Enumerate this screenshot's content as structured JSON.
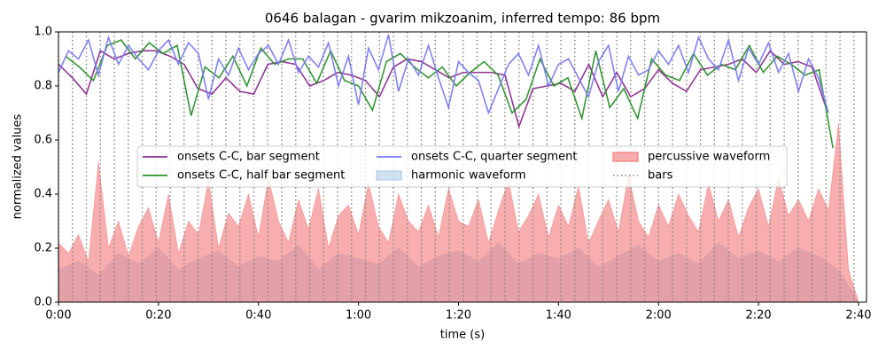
{
  "chart_data": {
    "type": "line",
    "title": "0646 balagan - gvarim mikzoanim, inferred tempo: 86 bpm",
    "x_label": "time (s)",
    "y_label": "normalized values",
    "xlim": [
      0,
      161.6
    ],
    "ylim": [
      0,
      1
    ],
    "xticks": [
      {
        "value": 0,
        "label": "0:00"
      },
      {
        "value": 20,
        "label": "0:20"
      },
      {
        "value": 40,
        "label": "0:40"
      },
      {
        "value": 60,
        "label": "1:00"
      },
      {
        "value": 80,
        "label": "1:20"
      },
      {
        "value": 100,
        "label": "1:40"
      },
      {
        "value": 120,
        "label": "2:00"
      },
      {
        "value": 140,
        "label": "2:20"
      },
      {
        "value": 160,
        "label": "2:40"
      }
    ],
    "yticks": [
      {
        "value": 0,
        "label": "0.0"
      },
      {
        "value": 0.2,
        "label": "0.2"
      },
      {
        "value": 0.4,
        "label": "0.4"
      },
      {
        "value": 0.6,
        "label": "0.6"
      },
      {
        "value": 0.8,
        "label": "0.8"
      },
      {
        "value": 1,
        "label": "1.0"
      }
    ],
    "legend": "center",
    "series": [
      {
        "name": "onsets C-C, bar segment",
        "kind": "line",
        "color": "#8a2c8e",
        "x": [
          0,
          2.79,
          5.58,
          8.37,
          11.16,
          13.96,
          16.75,
          19.54,
          22.33,
          25.12,
          27.91,
          30.7,
          33.49,
          36.28,
          39.07,
          41.87,
          44.66,
          47.45,
          50.24,
          53.03,
          55.82,
          58.61,
          61.4,
          64.19,
          66.98,
          69.78,
          72.57,
          75.36,
          78.15,
          80.94,
          83.73,
          86.52,
          89.31,
          92.1,
          94.89,
          97.69,
          100.48,
          103.27,
          106.06,
          108.85,
          111.64,
          114.43,
          117.22,
          120.01,
          122.8,
          125.6,
          128.39,
          131.18,
          133.97,
          136.76,
          139.55,
          142.34,
          145.13,
          147.92,
          150.71,
          153.51
        ],
        "values": [
          0.88,
          0.83,
          0.77,
          0.93,
          0.9,
          0.92,
          0.93,
          0.93,
          0.91,
          0.88,
          0.79,
          0.77,
          0.83,
          0.78,
          0.77,
          0.88,
          0.89,
          0.88,
          0.8,
          0.82,
          0.85,
          0.84,
          0.82,
          0.76,
          0.87,
          0.9,
          0.89,
          0.86,
          0.83,
          0.85,
          0.85,
          0.85,
          0.84,
          0.65,
          0.79,
          0.8,
          0.81,
          0.78,
          0.88,
          0.76,
          0.85,
          0.76,
          0.79,
          0.86,
          0.81,
          0.78,
          0.86,
          0.87,
          0.88,
          0.9,
          0.85,
          0.93,
          0.88,
          0.89,
          0.87,
          0.72
        ]
      },
      {
        "name": "onsets C-C, half bar segment",
        "kind": "line",
        "color": "#2a902a",
        "x": [
          1.4,
          4.19,
          6.98,
          9.77,
          12.56,
          15.35,
          18.14,
          20.94,
          23.73,
          26.52,
          29.31,
          32.1,
          34.89,
          37.68,
          40.47,
          43.26,
          46.05,
          48.85,
          51.64,
          54.43,
          57.22,
          60.01,
          62.8,
          65.59,
          68.38,
          71.17,
          73.97,
          76.76,
          79.55,
          82.34,
          85.13,
          87.92,
          90.71,
          93.5,
          96.29,
          99.08,
          101.88,
          104.67,
          107.46,
          110.25,
          113.04,
          115.83,
          118.62,
          121.41,
          124.2,
          126.99,
          129.78,
          132.58,
          135.37,
          138.16,
          140.95,
          143.74,
          146.53,
          149.32,
          152.11,
          154.9
        ],
        "values": [
          0.91,
          0.87,
          0.82,
          0.95,
          0.97,
          0.9,
          0.96,
          0.92,
          0.95,
          0.69,
          0.87,
          0.83,
          0.91,
          0.8,
          0.94,
          0.88,
          0.9,
          0.9,
          0.81,
          0.93,
          0.82,
          0.8,
          0.71,
          0.89,
          0.92,
          0.87,
          0.83,
          0.87,
          0.8,
          0.85,
          0.89,
          0.84,
          0.7,
          0.75,
          0.9,
          0.8,
          0.83,
          0.68,
          0.93,
          0.72,
          0.79,
          0.68,
          0.9,
          0.84,
          0.82,
          0.92,
          0.84,
          0.88,
          0.86,
          0.95,
          0.85,
          0.91,
          0.88,
          0.84,
          0.86,
          0.57
        ]
      },
      {
        "name": "onsets C-C, quarter segment",
        "kind": "line",
        "color": "#7a7af5",
        "x": [
          0,
          2,
          4,
          6,
          8,
          10,
          12,
          14,
          16,
          18,
          20,
          22,
          24,
          26,
          28,
          30,
          32,
          34,
          36,
          38,
          40,
          42,
          44,
          46,
          48,
          50,
          52,
          54,
          56,
          58,
          60,
          62,
          64,
          66,
          68,
          70,
          72,
          74,
          76,
          78,
          80,
          82,
          84,
          86,
          88,
          90,
          92,
          94,
          96,
          98,
          100,
          102,
          104,
          106,
          108,
          110,
          112,
          114,
          116,
          118,
          120,
          122,
          124,
          126,
          128,
          130,
          132,
          134,
          136,
          138,
          140,
          142,
          144,
          146,
          148,
          150,
          152,
          154
        ],
        "values": [
          0.85,
          0.93,
          0.9,
          0.97,
          0.84,
          0.98,
          0.88,
          0.95,
          0.9,
          0.86,
          0.93,
          0.97,
          0.88,
          0.96,
          0.92,
          0.75,
          0.9,
          0.84,
          0.94,
          0.86,
          0.92,
          0.95,
          0.88,
          0.97,
          0.85,
          0.91,
          0.87,
          0.96,
          0.8,
          0.91,
          0.73,
          0.94,
          0.86,
          0.99,
          0.78,
          0.9,
          0.84,
          0.95,
          0.83,
          0.72,
          0.89,
          0.85,
          0.82,
          0.7,
          0.79,
          0.88,
          0.92,
          0.84,
          0.95,
          0.8,
          0.88,
          0.9,
          0.83,
          0.76,
          0.89,
          0.95,
          0.78,
          0.91,
          0.84,
          0.86,
          0.93,
          0.88,
          0.95,
          0.85,
          0.98,
          0.9,
          0.86,
          0.97,
          0.82,
          0.94,
          0.88,
          0.96,
          0.85,
          0.92,
          0.78,
          0.9,
          0.83,
          0.7
        ]
      },
      {
        "name": "harmonic waveform",
        "kind": "area",
        "color": "#a9c8e4",
        "x": [
          0,
          4,
          8,
          12,
          16,
          20,
          24,
          28,
          32,
          36,
          40,
          44,
          48,
          52,
          56,
          60,
          64,
          68,
          72,
          76,
          80,
          84,
          88,
          92,
          96,
          100,
          104,
          108,
          112,
          116,
          120,
          124,
          128,
          132,
          136,
          140,
          144,
          148,
          152,
          156,
          160
        ],
        "values": [
          0.12,
          0.15,
          0.1,
          0.18,
          0.14,
          0.2,
          0.12,
          0.16,
          0.19,
          0.13,
          0.17,
          0.15,
          0.21,
          0.12,
          0.18,
          0.16,
          0.14,
          0.2,
          0.13,
          0.17,
          0.19,
          0.15,
          0.22,
          0.14,
          0.18,
          0.16,
          0.2,
          0.13,
          0.17,
          0.21,
          0.15,
          0.18,
          0.14,
          0.22,
          0.16,
          0.19,
          0.15,
          0.2,
          0.17,
          0.12,
          0.0
        ]
      },
      {
        "name": "percussive waveform",
        "kind": "area",
        "color": "#f36b6b",
        "x": [
          0,
          2,
          4,
          6,
          8,
          10,
          12,
          14,
          16,
          18,
          20,
          22,
          24,
          26,
          28,
          30,
          32,
          34,
          36,
          38,
          40,
          42,
          44,
          46,
          48,
          50,
          52,
          54,
          56,
          58,
          60,
          62,
          64,
          66,
          68,
          70,
          72,
          74,
          76,
          78,
          80,
          82,
          84,
          86,
          88,
          90,
          92,
          94,
          96,
          98,
          100,
          102,
          104,
          106,
          108,
          110,
          112,
          114,
          116,
          118,
          120,
          122,
          124,
          126,
          128,
          130,
          132,
          134,
          136,
          138,
          140,
          142,
          144,
          146,
          148,
          150,
          152,
          154,
          156,
          158,
          160
        ],
        "values": [
          0.22,
          0.18,
          0.25,
          0.15,
          0.52,
          0.2,
          0.3,
          0.17,
          0.28,
          0.35,
          0.22,
          0.4,
          0.18,
          0.3,
          0.25,
          0.45,
          0.2,
          0.33,
          0.28,
          0.4,
          0.24,
          0.46,
          0.3,
          0.22,
          0.38,
          0.27,
          0.42,
          0.2,
          0.32,
          0.36,
          0.25,
          0.44,
          0.28,
          0.22,
          0.4,
          0.3,
          0.26,
          0.36,
          0.24,
          0.42,
          0.3,
          0.28,
          0.38,
          0.22,
          0.34,
          0.45,
          0.26,
          0.32,
          0.4,
          0.24,
          0.36,
          0.28,
          0.43,
          0.22,
          0.3,
          0.38,
          0.26,
          0.47,
          0.3,
          0.24,
          0.36,
          0.28,
          0.4,
          0.32,
          0.26,
          0.44,
          0.3,
          0.38,
          0.24,
          0.35,
          0.42,
          0.28,
          0.46,
          0.32,
          0.38,
          0.3,
          0.42,
          0.34,
          0.66,
          0.12,
          0.0
        ]
      },
      {
        "name": "bars",
        "kind": "vlines",
        "color": "#808080",
        "x": [
          0,
          2.79,
          5.58,
          8.37,
          11.16,
          13.96,
          16.75,
          19.54,
          22.33,
          25.12,
          27.91,
          30.7,
          33.49,
          36.28,
          39.07,
          41.87,
          44.66,
          47.45,
          50.24,
          53.03,
          55.82,
          58.61,
          61.4,
          64.19,
          66.98,
          69.78,
          72.57,
          75.36,
          78.15,
          80.94,
          83.73,
          86.52,
          89.31,
          92.1,
          94.89,
          97.69,
          100.48,
          103.27,
          106.06,
          108.85,
          111.64,
          114.43,
          117.22,
          120.01,
          122.8,
          125.6,
          128.39,
          131.18,
          133.97,
          136.76,
          139.55,
          142.34,
          145.13,
          147.92,
          150.71,
          153.51,
          156.3,
          159.09
        ]
      }
    ]
  }
}
